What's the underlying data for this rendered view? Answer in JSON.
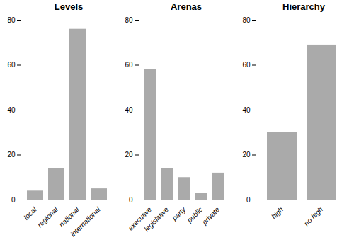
{
  "chart_data": [
    {
      "type": "bar",
      "title": "Levels",
      "categories": [
        "local",
        "regional",
        "national",
        "international"
      ],
      "values": [
        4,
        14,
        76,
        5
      ],
      "color": "#aaaaaa",
      "ylim": [
        0,
        80
      ],
      "yticks": [
        0,
        20,
        40,
        60,
        80
      ],
      "grid": false
    },
    {
      "type": "bar",
      "title": "Arenas",
      "categories": [
        "executive",
        "legislative",
        "party",
        "public",
        "private"
      ],
      "values": [
        58,
        14,
        10,
        3,
        12
      ],
      "color": "#aaaaaa",
      "ylim": [
        0,
        80
      ],
      "yticks": [
        0,
        20,
        40,
        60,
        80
      ],
      "grid": false
    },
    {
      "type": "bar",
      "title": "Hierarchy",
      "categories": [
        "high",
        "no high"
      ],
      "values": [
        30,
        69
      ],
      "color": "#aaaaaa",
      "ylim": [
        0,
        80
      ],
      "yticks": [
        0,
        20,
        40,
        60,
        80
      ],
      "grid": false
    }
  ]
}
